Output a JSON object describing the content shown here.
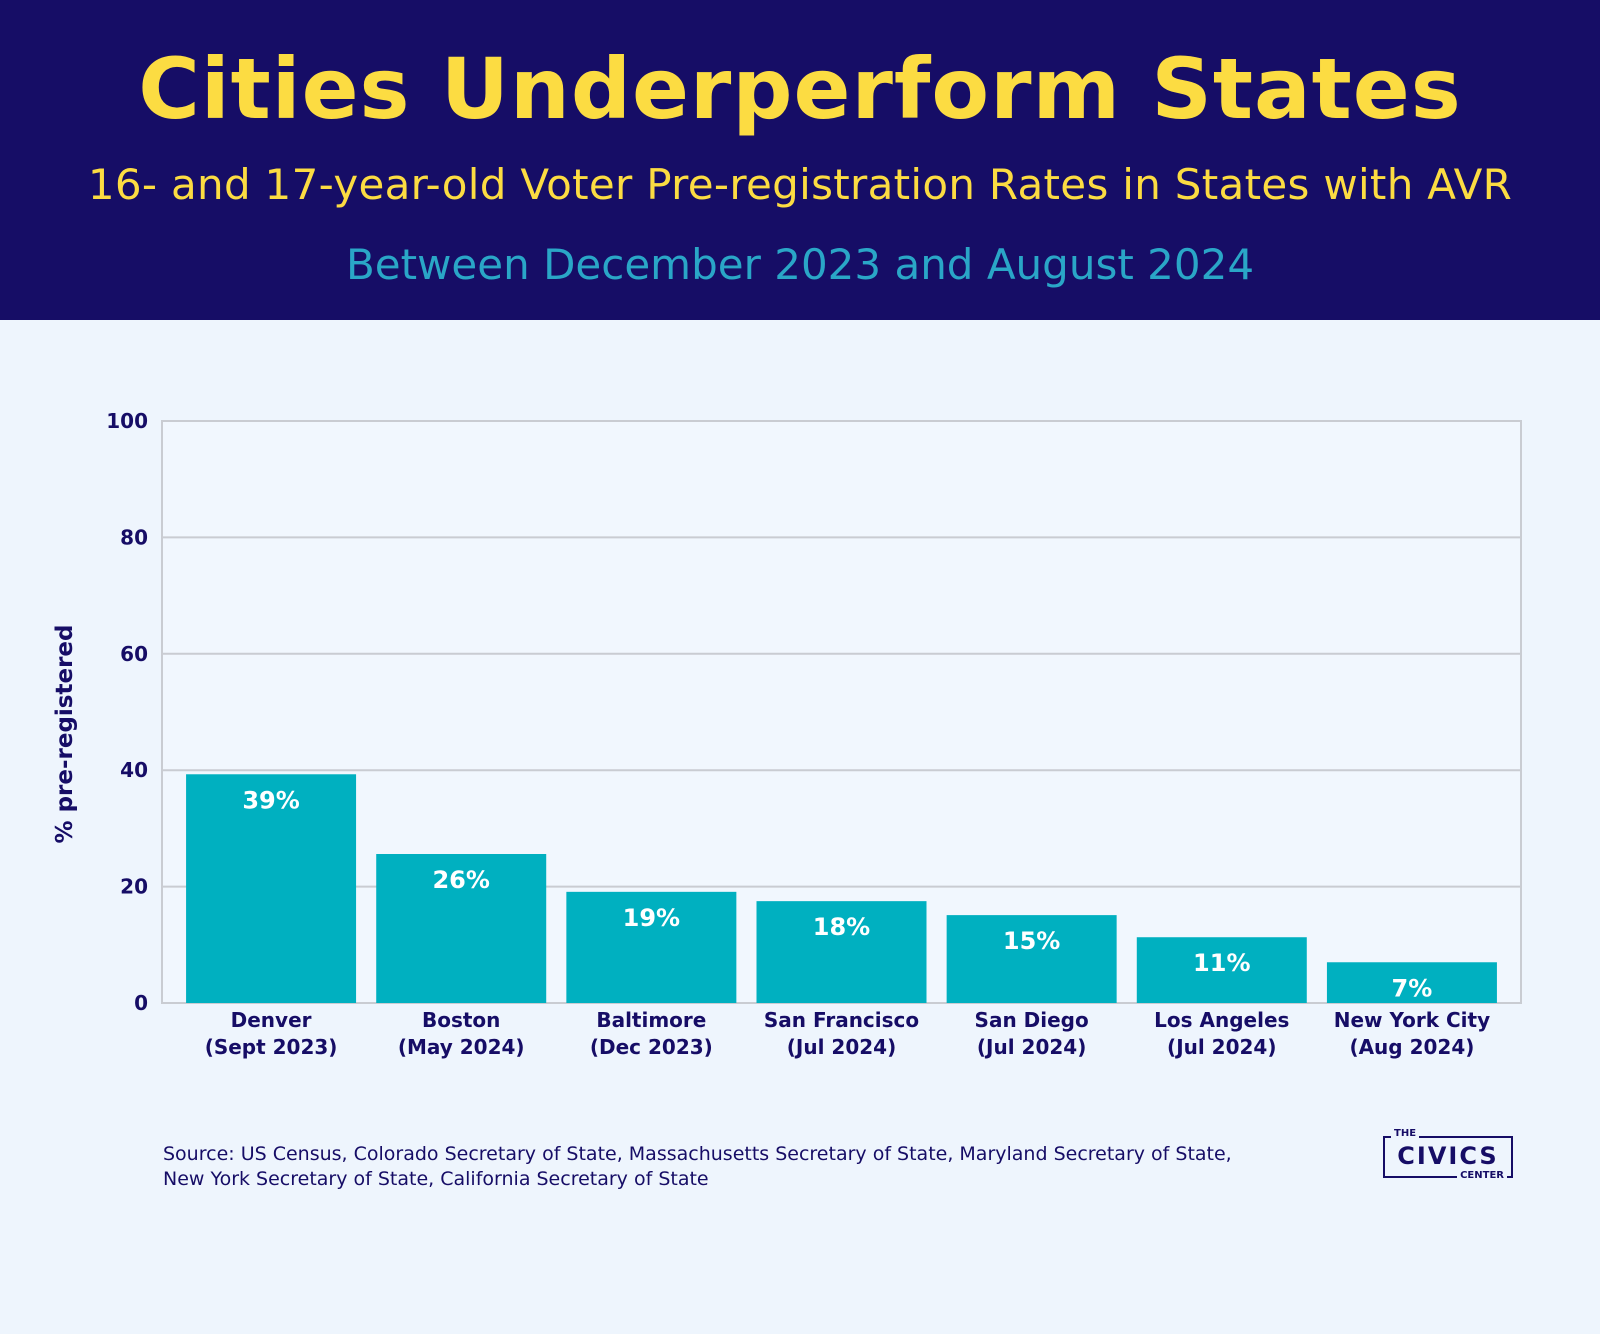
{
  "header": {
    "title": "Cities Underperform States",
    "subtitle": "16- and 17-year-old Voter Pre-registration Rates in States with AVR",
    "period": "Between December 2023 and August 2024"
  },
  "chart_data": {
    "type": "bar",
    "categories": [
      [
        "Denver",
        "(Sept 2023)"
      ],
      [
        "Boston",
        "(May 2024)"
      ],
      [
        "Baltimore",
        "(Dec 2023)"
      ],
      [
        "San Francisco",
        "(Jul 2024)"
      ],
      [
        "San Diego",
        "(Jul 2024)"
      ],
      [
        "Los Angeles",
        "(Jul 2024)"
      ],
      [
        "New York City",
        "(Aug 2024)"
      ]
    ],
    "values": [
      39.3,
      25.6,
      19.1,
      17.5,
      15.1,
      11.3,
      7.0
    ],
    "data_labels": [
      "39%",
      "26%",
      "19%",
      "18%",
      "15%",
      "11%",
      "7%"
    ],
    "ylabel": "% pre-registered",
    "ylim": [
      0,
      100
    ],
    "yticks": [
      0,
      20,
      40,
      60,
      80,
      100
    ],
    "grid": true,
    "bar_color": "#00b0c0"
  },
  "footer": {
    "source_line1": "Source: US Census, Colorado Secretary of State, Massachusetts Secretary of State, Maryland Secretary of State,",
    "source_line2": "New York Secretary of State, California Secretary of State"
  },
  "logo": {
    "the": "THE",
    "civics": "CIVICS",
    "center": "CENTER"
  }
}
